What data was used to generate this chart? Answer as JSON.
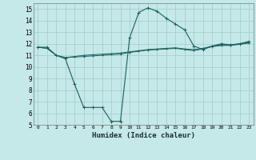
{
  "xlabel": "Humidex (Indice chaleur)",
  "background_color": "#c5e8e8",
  "grid_color": "#a8d0d0",
  "line_color": "#1a6060",
  "xlim": [
    -0.5,
    23.5
  ],
  "ylim": [
    5,
    15.5
  ],
  "yticks": [
    5,
    6,
    7,
    8,
    9,
    10,
    11,
    12,
    13,
    14,
    15
  ],
  "xticks": [
    0,
    1,
    2,
    3,
    4,
    5,
    6,
    7,
    8,
    9,
    10,
    11,
    12,
    13,
    14,
    15,
    16,
    17,
    18,
    19,
    20,
    21,
    22,
    23
  ],
  "line1_x": [
    0,
    1,
    2,
    3,
    4,
    5,
    6,
    7,
    8,
    9,
    10,
    11,
    12,
    13,
    14,
    15,
    16,
    17,
    18,
    19,
    20,
    21,
    22,
    23
  ],
  "line1_y": [
    11.7,
    11.7,
    11.0,
    10.7,
    8.5,
    6.5,
    6.5,
    6.5,
    5.3,
    5.3,
    12.5,
    14.7,
    15.1,
    14.8,
    14.2,
    13.7,
    13.2,
    11.8,
    11.5,
    11.8,
    12.0,
    11.9,
    12.0,
    12.2
  ],
  "line2_x": [
    0,
    1,
    2,
    3,
    4,
    5,
    6,
    7,
    8,
    9,
    10,
    11,
    12,
    13,
    14,
    15,
    16,
    17,
    18,
    19,
    20,
    21,
    22,
    23
  ],
  "line2_y": [
    11.7,
    11.6,
    11.0,
    10.8,
    10.9,
    11.0,
    11.05,
    11.1,
    11.15,
    11.2,
    11.3,
    11.4,
    11.5,
    11.55,
    11.6,
    11.65,
    11.55,
    11.5,
    11.6,
    11.8,
    11.9,
    11.9,
    12.0,
    12.1
  ],
  "line3_x": [
    0,
    1,
    2,
    3,
    4,
    5,
    6,
    7,
    8,
    9,
    10,
    11,
    12,
    13,
    14,
    15,
    16,
    17,
    18,
    19,
    20,
    21,
    22,
    23
  ],
  "line3_y": [
    11.7,
    11.6,
    11.0,
    10.8,
    10.85,
    10.9,
    10.95,
    11.0,
    11.05,
    11.1,
    11.25,
    11.35,
    11.45,
    11.5,
    11.55,
    11.6,
    11.5,
    11.4,
    11.55,
    11.75,
    11.85,
    11.85,
    11.95,
    12.05
  ]
}
